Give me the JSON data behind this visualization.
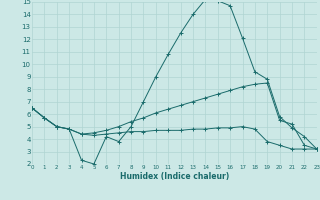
{
  "xlabel": "Humidex (Indice chaleur)",
  "background_color": "#cce8e6",
  "grid_color": "#b0d5d2",
  "line_color": "#1a6b6b",
  "xlim": [
    0,
    23
  ],
  "ylim": [
    2,
    15
  ],
  "yticks": [
    2,
    3,
    4,
    5,
    6,
    7,
    8,
    9,
    10,
    11,
    12,
    13,
    14,
    15
  ],
  "xticks": [
    0,
    1,
    2,
    3,
    4,
    5,
    6,
    7,
    8,
    9,
    10,
    11,
    12,
    13,
    14,
    15,
    16,
    17,
    18,
    19,
    20,
    21,
    22,
    23
  ],
  "line1_x": [
    0,
    1,
    2,
    3,
    4,
    5,
    6,
    7,
    8,
    9,
    10,
    11,
    12,
    13,
    14,
    15,
    16,
    17,
    18,
    19,
    20,
    21,
    22,
    23
  ],
  "line1_y": [
    6.5,
    5.7,
    5.0,
    4.8,
    2.3,
    2.0,
    4.2,
    3.8,
    5.0,
    7.0,
    9.0,
    10.8,
    12.5,
    14.0,
    15.2,
    15.1,
    14.7,
    12.1,
    9.4,
    8.8,
    5.8,
    4.9,
    4.2,
    3.2
  ],
  "line2_x": [
    0,
    1,
    2,
    3,
    4,
    5,
    6,
    7,
    8,
    9,
    10,
    11,
    12,
    13,
    14,
    15,
    16,
    17,
    18,
    19,
    20,
    21,
    22,
    23
  ],
  "line2_y": [
    6.5,
    5.7,
    5.0,
    4.8,
    4.4,
    4.5,
    4.7,
    5.0,
    5.4,
    5.7,
    6.1,
    6.4,
    6.7,
    7.0,
    7.3,
    7.6,
    7.9,
    8.2,
    8.4,
    8.5,
    5.5,
    5.2,
    3.5,
    3.2
  ],
  "line3_x": [
    0,
    1,
    2,
    3,
    4,
    5,
    6,
    7,
    8,
    9,
    10,
    11,
    12,
    13,
    14,
    15,
    16,
    17,
    18,
    19,
    20,
    21,
    22,
    23
  ],
  "line3_y": [
    6.5,
    5.7,
    5.0,
    4.8,
    4.4,
    4.3,
    4.4,
    4.5,
    4.6,
    4.6,
    4.7,
    4.7,
    4.7,
    4.8,
    4.8,
    4.9,
    4.9,
    5.0,
    4.8,
    3.8,
    3.5,
    3.2,
    3.2,
    3.2
  ]
}
